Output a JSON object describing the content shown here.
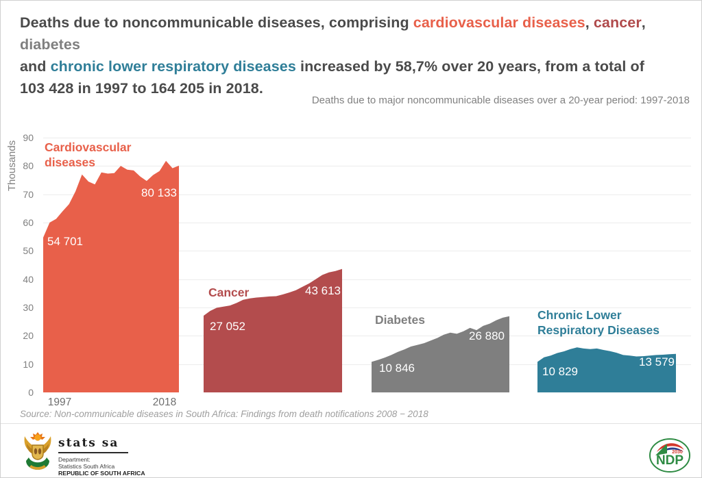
{
  "headline": {
    "lines": [
      {
        "segments": [
          {
            "text": "Deaths due to noncommunicable diseases, comprising ",
            "style": "default"
          },
          {
            "text": "cardiovascular diseases",
            "style": "cardio"
          },
          {
            "text": ", ",
            "style": "default"
          },
          {
            "text": "cancer",
            "style": "cancer"
          },
          {
            "text": ", ",
            "style": "default"
          },
          {
            "text": "diabetes",
            "style": "diabetes"
          }
        ]
      },
      {
        "segments": [
          {
            "text": "and ",
            "style": "default"
          },
          {
            "text": "chronic lower respiratory diseases",
            "style": "clrd"
          },
          {
            "text": " increased by 58,7% over 20 years, from a total of",
            "style": "default"
          }
        ]
      },
      {
        "segments": [
          {
            "text": "103 428 in 1997 to 164 205 in 2018.",
            "style": "default"
          }
        ]
      }
    ]
  },
  "chart": {
    "subtitle": "Deaths due to major noncommunicable diseases over a 20-year period: 1997-2018",
    "y_axis_title": "Thousands",
    "x_first_label": "1997",
    "x_last_label": "2018"
  },
  "chart_data": {
    "type": "area",
    "title": "Deaths due to major noncommunicable diseases over a 20-year period: 1997-2018",
    "ylabel": "Thousands",
    "ylim": [
      0,
      90
    ],
    "y_ticks": [
      0,
      10,
      20,
      30,
      40,
      50,
      60,
      70,
      80,
      90
    ],
    "x_years": [
      1997,
      1998,
      1999,
      2000,
      2001,
      2002,
      2003,
      2004,
      2005,
      2006,
      2007,
      2008,
      2009,
      2010,
      2011,
      2012,
      2013,
      2014,
      2015,
      2016,
      2017,
      2018
    ],
    "grid": "horizontal, light gray",
    "series": [
      {
        "key": "cardiovascular",
        "name": "Cardiovascular\ndiseases",
        "color": "#e8604a",
        "label_start": "54 701",
        "label_end": "80 133",
        "start_value": 54701,
        "end_value": 80133,
        "values": [
          54.7,
          60.0,
          61.3,
          64.0,
          66.5,
          71.0,
          77.0,
          74.5,
          73.5,
          77.7,
          77.3,
          77.5,
          80.0,
          78.7,
          78.4,
          76.3,
          74.7,
          76.8,
          78.2,
          81.8,
          79.2,
          80.1
        ]
      },
      {
        "key": "cancer",
        "name": "Cancer",
        "color": "#b34c4d",
        "label_start": "27 052",
        "label_end": "43 613",
        "start_value": 27052,
        "end_value": 43613,
        "values": [
          27.1,
          28.8,
          29.9,
          30.3,
          30.7,
          31.6,
          32.7,
          33.2,
          33.5,
          33.7,
          33.9,
          34.0,
          34.6,
          35.3,
          36.1,
          37.3,
          38.5,
          40.0,
          41.5,
          42.4,
          42.9,
          43.6
        ]
      },
      {
        "key": "diabetes",
        "name": "Diabetes",
        "color": "#7f7f7f",
        "label_start": "10 846",
        "label_end": "26 880",
        "start_value": 10846,
        "end_value": 26880,
        "values": [
          10.8,
          11.5,
          12.3,
          13.2,
          14.3,
          15.2,
          16.2,
          16.8,
          17.4,
          18.3,
          19.2,
          20.4,
          21.1,
          20.7,
          21.6,
          22.8,
          22.0,
          23.5,
          24.3,
          25.5,
          26.4,
          26.9
        ]
      },
      {
        "key": "clrd",
        "name": "Chronic Lower\nRespiratory Diseases",
        "color": "#2f7e98",
        "label_start": "10 829",
        "label_end": "13 579",
        "start_value": 10829,
        "end_value": 13579,
        "values": [
          10.8,
          12.4,
          13.0,
          13.9,
          14.5,
          15.3,
          15.9,
          15.5,
          15.3,
          15.5,
          15.0,
          14.6,
          14.0,
          13.2,
          13.0,
          12.7,
          12.8,
          13.0,
          13.2,
          13.3,
          13.5,
          13.6
        ]
      }
    ]
  },
  "source": "Source: Non-communicable diseases in South Africa: Findings from death notifications 2008 − 2018",
  "footer": {
    "statssa": {
      "name": "stats sa",
      "dept_line1": "Department:",
      "dept_line2": "Statistics South Africa",
      "dept_line3": "REPUBLIC OF SOUTH AFRICA"
    },
    "ndp": {
      "text": "NDP",
      "year": "2030"
    }
  }
}
